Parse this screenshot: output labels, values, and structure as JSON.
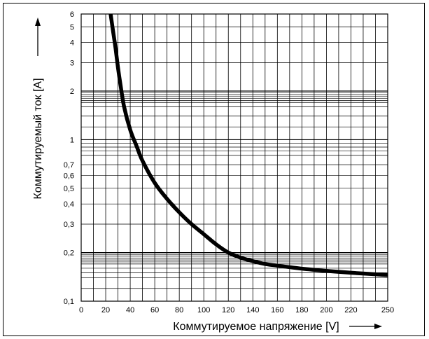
{
  "chart_data": {
    "type": "line",
    "xlabel": "Коммутируемое напряжение [V]",
    "ylabel": "Коммутируемый ток [A]",
    "y_scale": "log",
    "xlim": [
      0,
      250
    ],
    "ylim": [
      0.1,
      6
    ],
    "x_ticks": [
      "0",
      "20",
      "40",
      "60",
      "80",
      "100",
      "120",
      "140",
      "160",
      "180",
      "200",
      "220",
      "250"
    ],
    "y_ticks": [
      {
        "value": 0.1,
        "label": "0,1"
      },
      {
        "value": 0.2,
        "label": "0,2"
      },
      {
        "value": 0.3,
        "label": "0,3"
      },
      {
        "value": 0.4,
        "label": "0,4"
      },
      {
        "value": 0.5,
        "label": "0,5"
      },
      {
        "value": 0.6,
        "label": "0,6"
      },
      {
        "value": 0.7,
        "label": "0,7"
      },
      {
        "value": 1,
        "label": "1"
      },
      {
        "value": 2,
        "label": "2"
      },
      {
        "value": 3,
        "label": "3"
      },
      {
        "value": 4,
        "label": "4"
      },
      {
        "value": 5,
        "label": "5"
      },
      {
        "value": 6,
        "label": "6"
      }
    ],
    "grid": true,
    "series": [
      {
        "color": "#000000",
        "x": [
          24,
          26,
          28,
          30,
          32,
          35,
          40,
          45,
          50,
          60,
          70,
          80,
          90,
          100,
          110,
          120,
          130,
          140,
          150,
          160,
          180,
          200,
          220,
          250
        ],
        "y": [
          6.0,
          4.7,
          3.7,
          2.8,
          2.2,
          1.6,
          1.15,
          0.92,
          0.74,
          0.54,
          0.43,
          0.355,
          0.3,
          0.26,
          0.225,
          0.2,
          0.186,
          0.177,
          0.17,
          0.166,
          0.159,
          0.154,
          0.15,
          0.145
        ]
      }
    ]
  }
}
